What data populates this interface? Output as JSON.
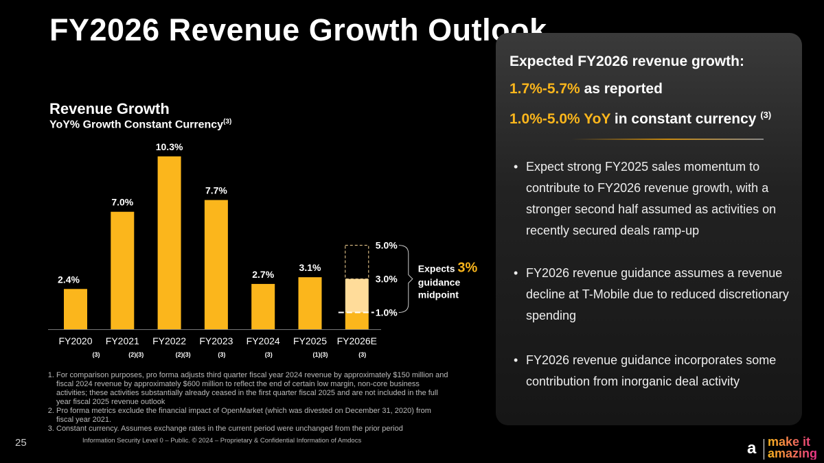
{
  "title": "FY2026 Revenue Growth Outlook",
  "chart_data": {
    "type": "bar",
    "title": "Revenue Growth",
    "subtitle": "YoY% Growth Constant Currency",
    "subtitle_sup": "(3)",
    "categories": [
      "FY2020",
      "FY2021",
      "FY2022",
      "FY2023",
      "FY2024",
      "FY2025",
      "FY2026E"
    ],
    "footnote_refs": [
      "(3)",
      "(2)(3)",
      "(2)(3)",
      "(3)",
      "(3)",
      "(1)(3)",
      "(3)"
    ],
    "values": [
      2.4,
      7.0,
      10.3,
      7.7,
      2.7,
      3.1,
      3.0
    ],
    "labels": [
      "2.4%",
      "7.0%",
      "10.3%",
      "7.7%",
      "2.7%",
      "3.1%",
      "3.0%"
    ],
    "guidance_range": {
      "low": 1.0,
      "mid": 3.0,
      "high": 5.0,
      "low_label": "1.0%",
      "high_label": "5.0%"
    },
    "annotation": {
      "prefix": "Expects ",
      "highlight": "3%",
      "line2": "guidance",
      "line3": "midpoint"
    },
    "ylim": [
      0,
      10.3
    ],
    "colors": {
      "bar": "#fbb61c",
      "forecast": "#ffdc9a",
      "text": "#ffffff"
    },
    "grid": false
  },
  "panel": {
    "heading": "Expected FY2026 revenue growth:",
    "line1_accent": "1.7%-5.7%",
    "line1_text": " as reported",
    "line2_accent": "1.0%-5.0% YoY",
    "line2_text": " in constant currency ",
    "line2_sup": "(3)",
    "bullets": [
      "Expect strong FY2025 sales momentum to contribute to FY2026 revenue growth, with a stronger second half assumed as activities on recently secured deals ramp-up",
      "FY2026 revenue guidance assumes a revenue decline at T-Mobile due to reduced discretionary spending",
      "FY2026 revenue guidance incorporates some contribution from inorganic deal activity"
    ]
  },
  "notes": [
    "For comparison purposes, pro forma adjusts third quarter fiscal year 2024 revenue by approximately $150 million and fiscal 2024 revenue by approximately $600 million to reflect the end of certain low margin, non-core business activities; these activities substantially already ceased in the first quarter fiscal 2025 and are not included in the full year fiscal 2025 revenue outlook",
    "Pro forma metrics exclude the financial impact of OpenMarket (which was divested on December 31, 2020) from fiscal year 2021.",
    "Constant currency. Assumes exchange rates in the current period were unchanged from the prior period"
  ],
  "page_number": "25",
  "footer": "Information Security Level 0 – Public. © 2024 – Proprietary & Confidential Information of Amdocs",
  "logo": {
    "mark": "a·",
    "text1": "make it",
    "text2": "amazing"
  }
}
